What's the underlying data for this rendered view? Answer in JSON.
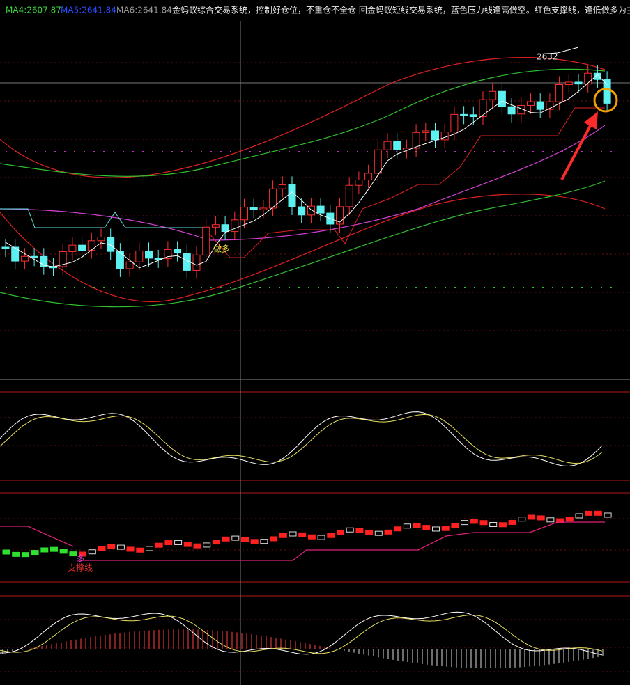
{
  "header": {
    "indicators": [
      {
        "text": "MA4:2607.87",
        "color": "#3cd63c"
      },
      {
        "text": "MA5:2641.84",
        "color": "#2b4cff"
      },
      {
        "text": "MA6:2641.84",
        "color": "#9a9a9a"
      }
    ],
    "description": "金蚂蚁综合交易系统，控制好仓位，不重仓不全仓 回金蚂蚁短线交易系统，蓝色压力线逢高做空。红色支撑线，逢低做多为主"
  },
  "labels": {
    "high": "2632",
    "long_signal": "做多",
    "long_mark": "多",
    "support": "支撑线"
  }
}
